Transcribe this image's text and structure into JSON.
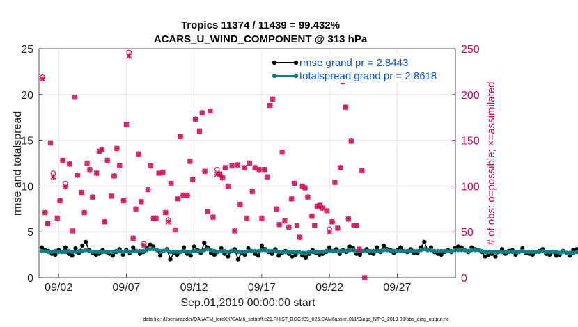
{
  "chart_data": {
    "type": "line",
    "title_line1": "Tropics 11374 / 11439 = 99.432%",
    "title_line2": "ACARS_U_WIND_COMPONENT @ 313 hPa",
    "xlabel": "Sep.01,2019 00:00:00 start",
    "ylabel_left": "rmse and totalspread",
    "ylabel_right": "# of obs: o=possible; ×=assimilated",
    "xlim": [
      0.55,
      31.3
    ],
    "ylim_left": [
      0,
      25
    ],
    "ylim_right": [
      0,
      250
    ],
    "x_ticks": [
      {
        "x": 2,
        "label": "09/02"
      },
      {
        "x": 7,
        "label": "09/07"
      },
      {
        "x": 12,
        "label": "09/12"
      },
      {
        "x": 17,
        "label": "09/17"
      },
      {
        "x": 22,
        "label": "09/22"
      },
      {
        "x": 27,
        "label": "09/27"
      }
    ],
    "y_ticks_left": [
      "0",
      "5",
      "10",
      "15",
      "20",
      "25"
    ],
    "y_ticks_right": [
      "0",
      "50",
      "100",
      "150",
      "200",
      "250"
    ],
    "legend_loc": "top-right",
    "footer": "data file: /Users/raeder/DAI/ATM_forcXX/CAM6_setup/f.e21.FHIST_BGC.f09_025.CAM6assim.011/Diags_NTrS_2019-09/obs_diag_output.nc",
    "colors": {
      "rmse": "#000000",
      "spread": "#0f7f7f",
      "obs": "#d6185f",
      "legend_text": "#0a55d9"
    },
    "series": [
      {
        "name": "rmse",
        "legend": "rmse grand pr = 2.8443",
        "x_start": 0.75,
        "x_step": 0.25,
        "values": [
          3.3,
          3.0,
          2.9,
          2.6,
          2.5,
          3.0,
          2.8,
          3.3,
          2.6,
          2.4,
          3.2,
          2.7,
          3.5,
          3.9,
          3.0,
          2.7,
          2.5,
          2.6,
          3.0,
          2.8,
          2.6,
          2.4,
          2.8,
          3.1,
          2.5,
          3.0,
          2.7,
          3.3,
          2.9,
          2.6,
          2.8,
          3.2,
          3.6,
          3.4,
          3.0,
          2.4,
          2.9,
          3.1,
          2.0,
          2.7,
          2.5,
          2.8,
          3.3,
          2.6,
          2.4,
          3.4,
          3.0,
          2.7,
          3.8,
          3.3,
          2.7,
          2.5,
          2.8,
          3.2,
          2.6,
          2.3,
          2.9,
          3.1,
          2.0,
          2.7,
          2.5,
          3.2,
          2.9,
          2.6,
          2.4,
          3.5,
          3.1,
          2.8,
          2.6,
          3.1,
          2.4,
          2.7,
          2.9,
          2.6,
          2.3,
          2.5,
          2.8,
          2.4,
          2.2,
          2.6,
          3.0,
          2.7,
          2.5,
          2.6,
          2.8,
          3.3,
          2.9,
          3.1,
          2.6,
          3.0,
          2.8,
          3.4,
          3.2,
          2.6,
          2.5,
          2.9,
          3.1,
          2.7,
          2.6,
          3.3,
          2.8,
          3.5,
          3.1,
          3.0,
          2.7,
          3.0,
          3.3,
          2.9,
          2.8,
          3.1,
          2.7,
          2.7,
          3.3,
          3.9,
          3.0,
          3.3,
          2.8,
          2.6,
          2.5,
          2.8,
          3.0,
          2.8,
          3.2,
          3.4,
          3.3,
          3.0,
          2.8,
          3.3,
          3.1,
          3.0,
          2.8,
          2.3,
          2.5,
          2.6,
          2.3,
          2.8,
          3.1,
          2.6,
          2.9,
          3.0,
          2.5,
          2.8,
          3.2,
          2.7,
          2.6,
          2.5,
          2.8,
          2.9,
          3.1,
          2.6,
          2.5,
          2.8,
          2.4,
          2.5,
          2.9,
          2.7,
          2.4,
          3.0,
          3.1,
          2.6,
          2.5,
          2.8,
          2.6,
          3.1,
          2.9,
          2.8,
          3.3,
          3.5,
          2.9,
          3.0,
          4.4,
          3.2,
          3.3,
          3.1
        ]
      },
      {
        "name": "totalspread",
        "legend": "totalspread grand pr = 2.8618",
        "x_start": 0.75,
        "x_step": 0.25,
        "values": [
          2.9,
          2.9,
          2.8,
          2.8,
          2.9,
          2.8,
          2.8,
          2.8,
          2.9,
          2.8,
          2.8,
          2.9,
          2.9,
          3.0,
          2.9,
          2.8,
          2.8,
          2.8,
          2.8,
          2.8,
          2.8,
          2.8,
          2.9,
          2.9,
          2.8,
          2.9,
          2.8,
          2.9,
          2.9,
          2.9,
          2.9,
          3.0,
          3.1,
          3.1,
          3.0,
          2.9,
          2.9,
          3.0,
          2.8,
          2.8,
          2.8,
          2.8,
          2.9,
          2.8,
          2.8,
          2.9,
          2.9,
          2.9,
          3.0,
          3.1,
          3.0,
          2.9,
          2.8,
          2.9,
          2.9,
          2.8,
          2.9,
          2.9,
          2.8,
          2.8,
          2.8,
          2.9,
          2.9,
          2.9,
          2.9,
          3.0,
          3.0,
          2.9,
          2.9,
          2.9,
          2.8,
          2.8,
          2.8,
          2.8,
          2.8,
          2.8,
          2.8,
          2.7,
          2.7,
          2.8,
          2.8,
          2.8,
          2.8,
          2.8,
          2.9,
          2.9,
          2.9,
          2.9,
          2.9,
          2.9,
          2.9,
          3.0,
          3.0,
          2.9,
          2.9,
          2.9,
          2.9,
          2.9,
          2.9,
          2.9,
          2.9,
          3.0,
          3.0,
          2.9,
          2.9,
          2.9,
          2.9,
          2.9,
          2.9,
          2.9,
          2.9,
          2.9,
          3.0,
          3.1,
          3.0,
          3.0,
          2.9,
          2.9,
          2.9,
          2.9,
          2.9,
          2.9,
          3.0,
          3.0,
          3.0,
          3.0,
          2.9,
          3.0,
          3.0,
          3.0,
          2.9,
          2.8,
          2.8,
          2.8,
          2.8,
          2.8,
          2.8,
          2.8,
          2.8,
          2.8,
          2.8,
          2.8,
          2.9,
          2.8,
          2.8,
          2.8,
          2.8,
          2.8,
          2.9,
          2.8,
          2.8,
          2.8,
          2.8,
          2.7,
          2.8,
          2.7,
          2.7,
          2.7,
          2.8,
          2.7,
          2.7,
          2.7,
          2.7,
          2.8,
          2.8,
          2.8,
          2.8,
          2.9,
          2.9,
          2.9,
          3.0,
          3.0,
          3.0,
          2.9
        ]
      },
      {
        "name": "obs_possible",
        "marker": "o",
        "points": [
          [
            0.8,
            219
          ],
          [
            1.0,
            71
          ],
          [
            1.2,
            59
          ],
          [
            1.4,
            147
          ],
          [
            1.6,
            114
          ],
          [
            1.9,
            65
          ],
          [
            2.1,
            84
          ],
          [
            2.3,
            128
          ],
          [
            2.5,
            103
          ],
          [
            2.8,
            124
          ],
          [
            3.0,
            51
          ],
          [
            3.2,
            197
          ],
          [
            3.4,
            112
          ],
          [
            3.7,
            93
          ],
          [
            3.9,
            71
          ],
          [
            4.1,
            125
          ],
          [
            4.3,
            118
          ],
          [
            4.5,
            88
          ],
          [
            4.8,
            114
          ],
          [
            5.0,
            138
          ],
          [
            5.2,
            140
          ],
          [
            5.4,
            61
          ],
          [
            5.6,
            128
          ],
          [
            5.9,
            89
          ],
          [
            6.1,
            111
          ],
          [
            6.3,
            141
          ],
          [
            6.5,
            122
          ],
          [
            6.8,
            84
          ],
          [
            7.0,
            167
          ],
          [
            7.2,
            246
          ],
          [
            7.5,
            43
          ],
          [
            7.7,
            75
          ],
          [
            7.9,
            135
          ],
          [
            8.1,
            83
          ],
          [
            8.3,
            37
          ],
          [
            8.6,
            96
          ],
          [
            8.8,
            122
          ],
          [
            9.0,
            65
          ],
          [
            9.2,
            65
          ],
          [
            9.4,
            114
          ],
          [
            9.7,
            115
          ],
          [
            9.9,
            71
          ],
          [
            10.1,
            63
          ],
          [
            10.3,
            103
          ],
          [
            10.6,
            52
          ],
          [
            10.8,
            86
          ],
          [
            11.0,
            154
          ],
          [
            11.2,
            90
          ],
          [
            11.5,
            90
          ],
          [
            11.7,
            127
          ],
          [
            11.9,
            107
          ],
          [
            12.1,
            173
          ],
          [
            12.4,
            160
          ],
          [
            12.6,
            180
          ],
          [
            12.8,
            116
          ],
          [
            13.0,
            72
          ],
          [
            13.2,
            182
          ],
          [
            13.4,
            66
          ],
          [
            13.7,
            118
          ],
          [
            13.9,
            113
          ],
          [
            14.1,
            109
          ],
          [
            14.3,
            120
          ],
          [
            14.5,
            100
          ],
          [
            14.8,
            122
          ],
          [
            15.0,
            51
          ],
          [
            15.2,
            123
          ],
          [
            15.4,
            80
          ],
          [
            15.7,
            120
          ],
          [
            15.9,
            65
          ],
          [
            16.1,
            125
          ],
          [
            16.3,
            94
          ],
          [
            16.5,
            120
          ],
          [
            16.8,
            118
          ],
          [
            17.0,
            65
          ],
          [
            17.2,
            118
          ],
          [
            17.4,
            110
          ],
          [
            17.6,
            188
          ],
          [
            17.8,
            195
          ],
          [
            18.1,
            75
          ],
          [
            18.3,
            58
          ],
          [
            18.5,
            137
          ],
          [
            18.7,
            62
          ],
          [
            19.0,
            55
          ],
          [
            19.2,
            86
          ],
          [
            19.4,
            103
          ],
          [
            19.6,
            57
          ],
          [
            19.8,
            44
          ],
          [
            20.0,
            100
          ],
          [
            20.2,
            98
          ],
          [
            20.4,
            88
          ],
          [
            20.7,
            67
          ],
          [
            20.9,
            57
          ],
          [
            21.1,
            78
          ],
          [
            21.3,
            79
          ],
          [
            21.5,
            76
          ],
          [
            21.8,
            73
          ],
          [
            22.0,
            53
          ],
          [
            22.2,
            61
          ],
          [
            22.4,
            104
          ],
          [
            22.6,
            54
          ],
          [
            22.8,
            120
          ],
          [
            23.0,
            214
          ],
          [
            23.2,
            186
          ],
          [
            23.4,
            64
          ],
          [
            23.6,
            149
          ],
          [
            23.8,
            57
          ],
          [
            24.0,
            57
          ],
          [
            24.2,
            31
          ],
          [
            24.4,
            117
          ],
          [
            24.6,
            0
          ]
        ]
      },
      {
        "name": "obs_assimilated",
        "marker": "x",
        "points": [
          [
            0.8,
            217
          ],
          [
            1.0,
            71
          ],
          [
            1.2,
            59
          ],
          [
            1.4,
            147
          ],
          [
            1.6,
            110
          ],
          [
            1.9,
            65
          ],
          [
            2.1,
            84
          ],
          [
            2.3,
            128
          ],
          [
            2.5,
            99
          ],
          [
            2.8,
            124
          ],
          [
            3.0,
            51
          ],
          [
            3.2,
            197
          ],
          [
            3.4,
            112
          ],
          [
            3.7,
            93
          ],
          [
            3.9,
            71
          ],
          [
            4.1,
            125
          ],
          [
            4.3,
            118
          ],
          [
            4.5,
            88
          ],
          [
            4.8,
            114
          ],
          [
            5.0,
            138
          ],
          [
            5.2,
            140
          ],
          [
            5.4,
            61
          ],
          [
            5.6,
            128
          ],
          [
            5.9,
            89
          ],
          [
            6.1,
            111
          ],
          [
            6.3,
            141
          ],
          [
            6.5,
            122
          ],
          [
            6.8,
            84
          ],
          [
            7.0,
            167
          ],
          [
            7.2,
            242
          ],
          [
            7.5,
            43
          ],
          [
            7.7,
            75
          ],
          [
            7.9,
            135
          ],
          [
            8.1,
            83
          ],
          [
            8.3,
            35
          ],
          [
            8.6,
            96
          ],
          [
            8.8,
            122
          ],
          [
            9.0,
            65
          ],
          [
            9.2,
            65
          ],
          [
            9.4,
            114
          ],
          [
            9.7,
            115
          ],
          [
            9.9,
            71
          ],
          [
            10.1,
            61
          ],
          [
            10.3,
            103
          ],
          [
            10.6,
            52
          ],
          [
            10.8,
            86
          ],
          [
            11.0,
            154
          ],
          [
            11.2,
            90
          ],
          [
            11.5,
            90
          ],
          [
            11.7,
            127
          ],
          [
            11.9,
            107
          ],
          [
            12.1,
            173
          ],
          [
            12.4,
            160
          ],
          [
            12.6,
            180
          ],
          [
            12.8,
            116
          ],
          [
            13.0,
            72
          ],
          [
            13.2,
            182
          ],
          [
            13.4,
            66
          ],
          [
            13.7,
            113
          ],
          [
            13.9,
            113
          ],
          [
            14.1,
            109
          ],
          [
            14.3,
            120
          ],
          [
            14.5,
            100
          ],
          [
            14.8,
            122
          ],
          [
            15.0,
            51
          ],
          [
            15.2,
            123
          ],
          [
            15.4,
            80
          ],
          [
            15.7,
            120
          ],
          [
            15.9,
            65
          ],
          [
            16.1,
            125
          ],
          [
            16.3,
            94
          ],
          [
            16.5,
            120
          ],
          [
            16.8,
            118
          ],
          [
            17.0,
            65
          ],
          [
            17.2,
            118
          ],
          [
            17.4,
            110
          ],
          [
            17.6,
            188
          ],
          [
            17.8,
            195
          ],
          [
            18.1,
            75
          ],
          [
            18.3,
            58
          ],
          [
            18.5,
            137
          ],
          [
            18.7,
            62
          ],
          [
            19.0,
            55
          ],
          [
            19.2,
            86
          ],
          [
            19.4,
            103
          ],
          [
            19.6,
            57
          ],
          [
            19.8,
            44
          ],
          [
            20.0,
            100
          ],
          [
            20.2,
            98
          ],
          [
            20.4,
            88
          ],
          [
            20.7,
            67
          ],
          [
            20.9,
            57
          ],
          [
            21.1,
            78
          ],
          [
            21.3,
            79
          ],
          [
            21.5,
            76
          ],
          [
            21.8,
            73
          ],
          [
            22.0,
            50
          ],
          [
            22.2,
            61
          ],
          [
            22.4,
            104
          ],
          [
            22.6,
            54
          ],
          [
            22.8,
            120
          ],
          [
            23.0,
            214
          ],
          [
            23.2,
            186
          ],
          [
            23.4,
            64
          ],
          [
            23.6,
            149
          ],
          [
            23.8,
            57
          ],
          [
            24.0,
            57
          ],
          [
            24.2,
            31
          ],
          [
            24.4,
            117
          ],
          [
            24.6,
            0
          ]
        ]
      }
    ]
  }
}
